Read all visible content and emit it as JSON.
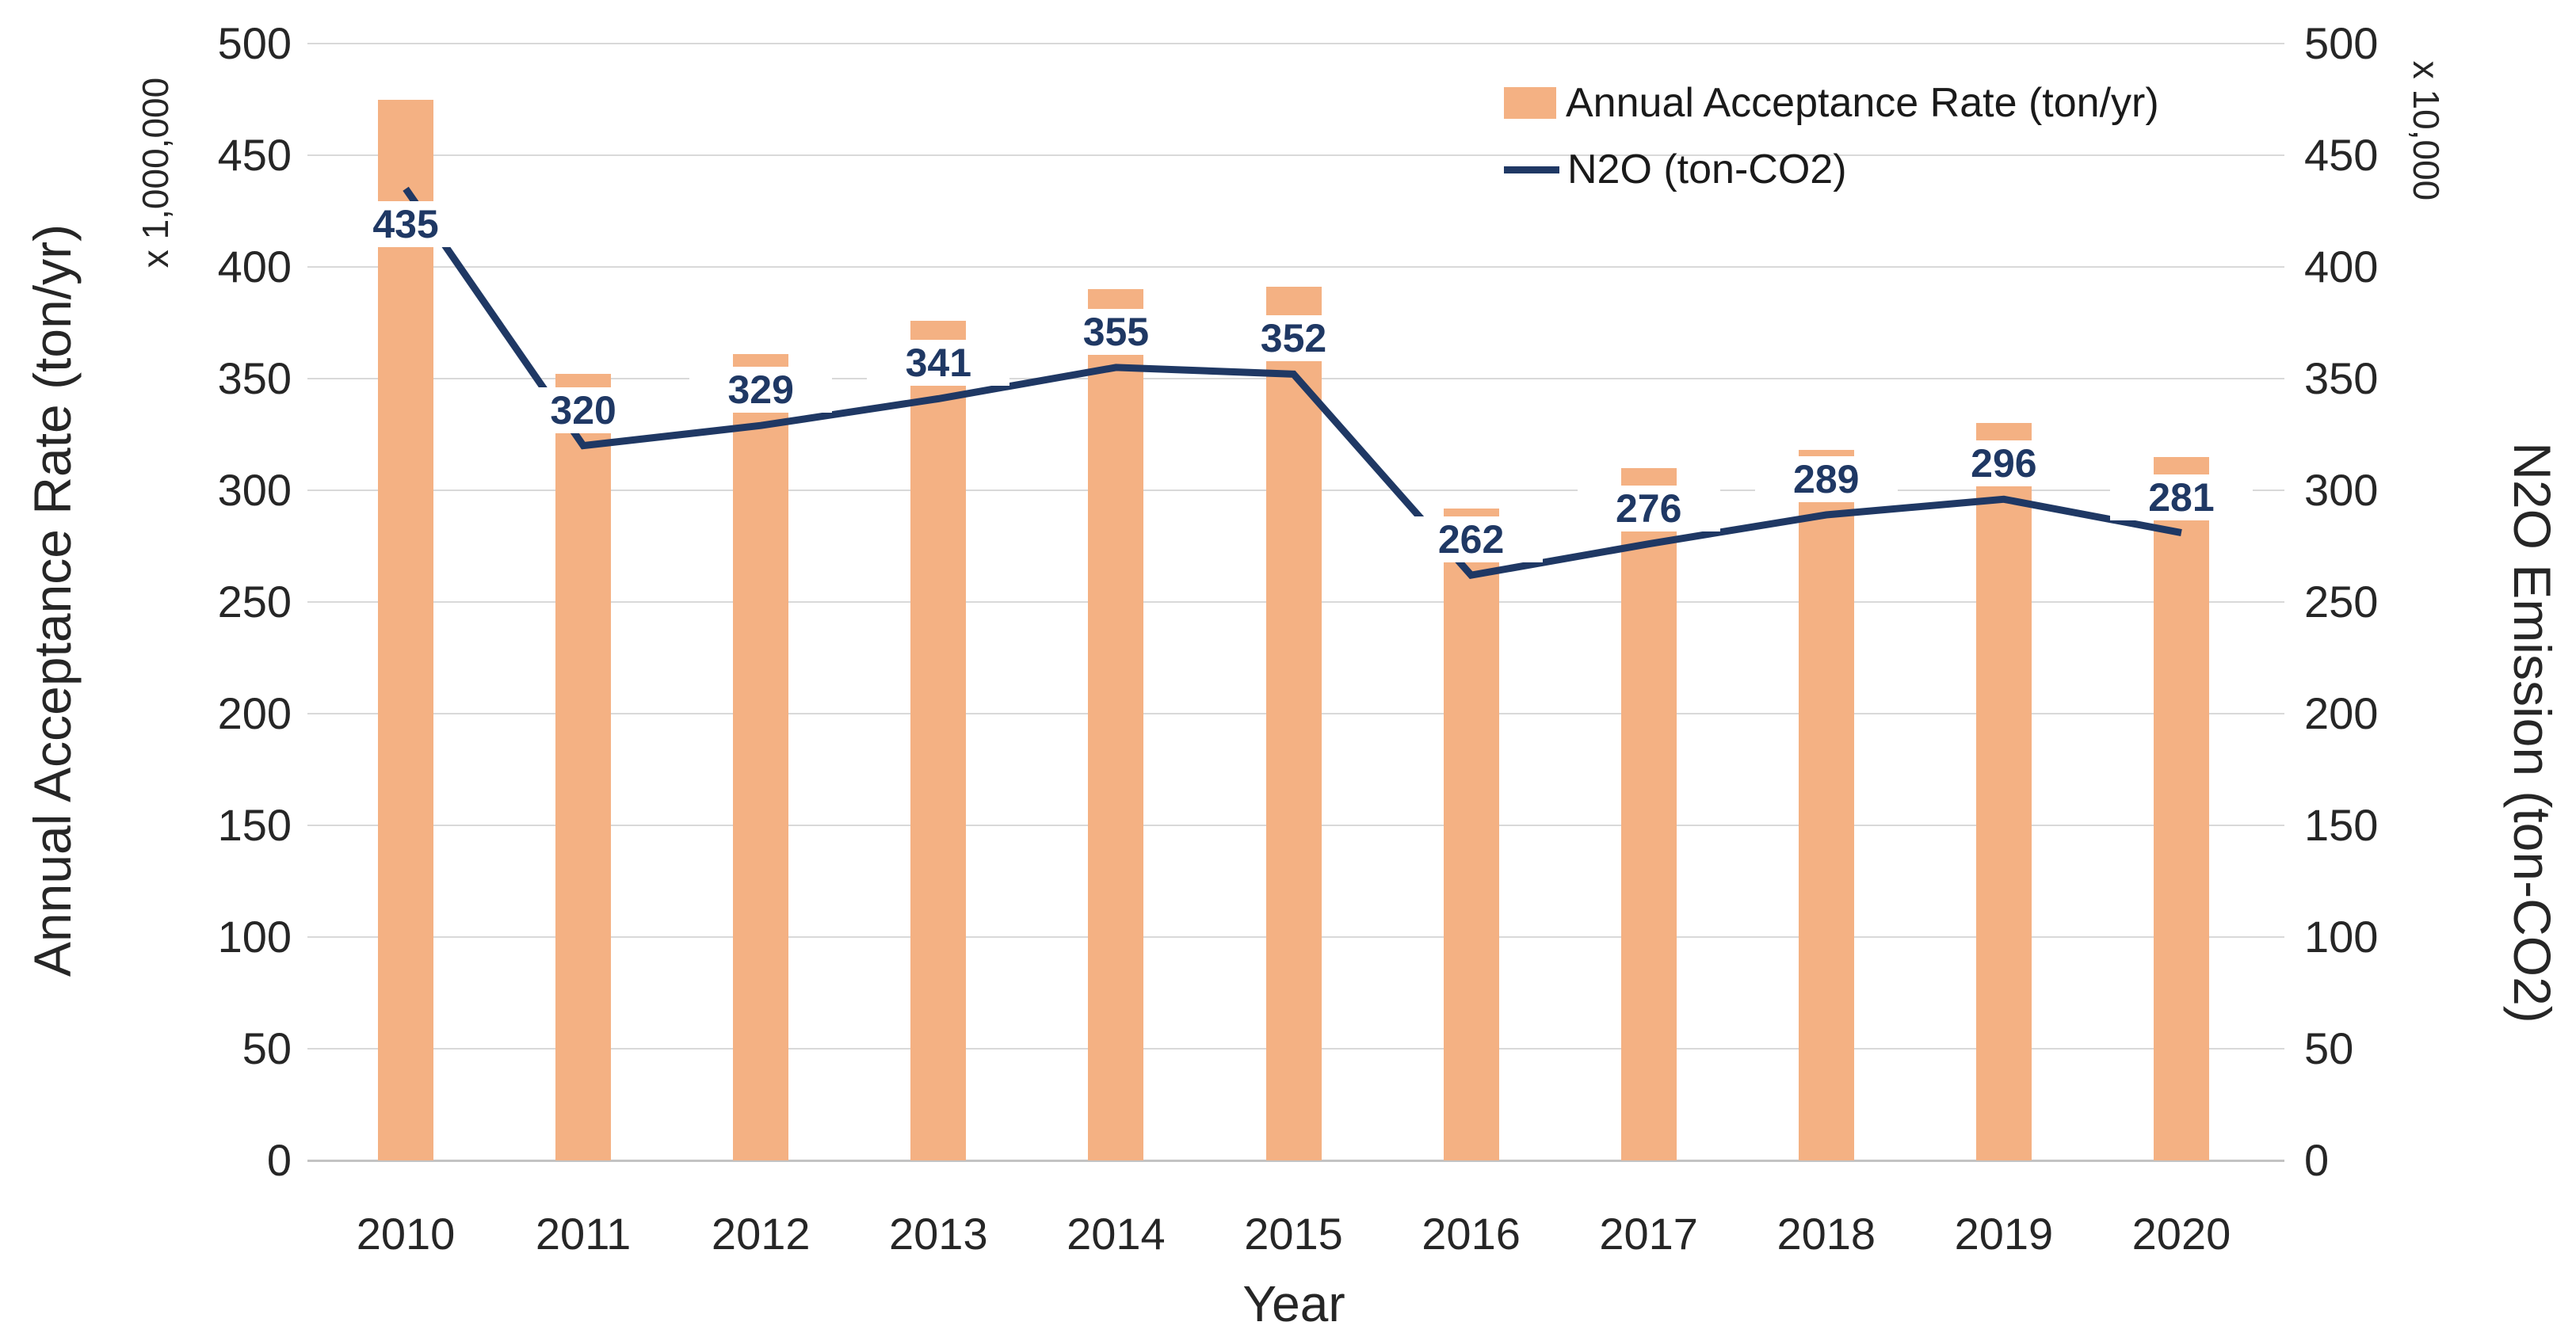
{
  "chart_data": {
    "type": "combo-bar-line",
    "categories": [
      "2010",
      "2011",
      "2012",
      "2013",
      "2014",
      "2015",
      "2016",
      "2017",
      "2018",
      "2019",
      "2020"
    ],
    "series": [
      {
        "name": "Annual Acceptance Rate (ton/yr)",
        "type": "bar",
        "axis": "left",
        "color": "#f4b183",
        "values": [
          475,
          352,
          361,
          376,
          390,
          391,
          292,
          310,
          318,
          330,
          315
        ]
      },
      {
        "name": "N2O (ton-CO2)",
        "type": "line",
        "axis": "right",
        "color": "#1f3864",
        "values": [
          435,
          320,
          329,
          341,
          355,
          352,
          262,
          276,
          289,
          296,
          281
        ],
        "data_labels": [
          435,
          320,
          329,
          341,
          355,
          352,
          262,
          276,
          289,
          296,
          281
        ]
      }
    ],
    "x_axis": {
      "title": "Year",
      "tick_labels": [
        "2010",
        "2011",
        "2012",
        "2013",
        "2014",
        "2015",
        "2016",
        "2017",
        "2018",
        "2019",
        "2020"
      ]
    },
    "left_axis": {
      "title": "Annual Acceptance Rate (ton/yr)",
      "multiplier": "x 1,000,000",
      "min": 0,
      "max": 500,
      "step": 50,
      "tick_labels": [
        "500",
        "450",
        "400",
        "350",
        "300",
        "250",
        "200",
        "150",
        "100",
        "50",
        "0"
      ]
    },
    "right_axis": {
      "title": "N2O Emission (ton-CO2)",
      "multiplier": "x 10,000",
      "min": 0,
      "max": 500,
      "step": 50,
      "tick_labels": [
        "500",
        "450",
        "400",
        "350",
        "300",
        "250",
        "200",
        "150",
        "100",
        "50",
        "0"
      ]
    },
    "legend": {
      "position": "top-right",
      "entries": [
        {
          "label": "Annual Acceptance Rate (ton/yr)",
          "swatch": "bar",
          "color": "#f4b183"
        },
        {
          "label": "N2O (ton-CO2)",
          "swatch": "line",
          "color": "#1f3864"
        }
      ]
    },
    "grid": {
      "horizontal": true,
      "vertical": false,
      "color": "#d9d9d9"
    },
    "colors": {
      "background": "#ffffff",
      "bar": "#f4b183",
      "line": "#1f3864",
      "data_label_text": "#1f3864",
      "data_label_fill": "#ffffff",
      "axis_text": "#262626"
    }
  }
}
